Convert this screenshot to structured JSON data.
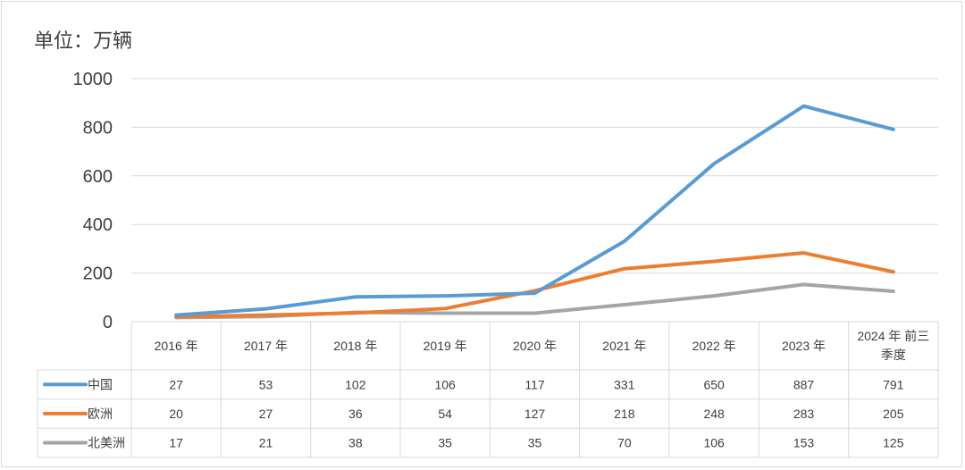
{
  "unit_label": "单位：万辆",
  "colors": {
    "中国": "#5b9bd5",
    "欧洲": "#ed7d31",
    "北美洲": "#a5a5a5",
    "grid": "#d9d9d9"
  },
  "chart_data": {
    "type": "line",
    "title": "",
    "xlabel": "",
    "ylabel": "单位：万辆",
    "ylim": [
      0,
      1000
    ],
    "yticks": [
      0,
      200,
      400,
      600,
      800,
      1000
    ],
    "grid": true,
    "legend": "data-table",
    "categories": [
      "2016 年",
      "2017 年",
      "2018 年",
      "2019 年",
      "2020 年",
      "2021 年",
      "2022 年",
      "2023 年",
      "2024 年 前三季度"
    ],
    "series": [
      {
        "name": "中国",
        "values": [
          27,
          53,
          102,
          106,
          117,
          331,
          650,
          887,
          791
        ]
      },
      {
        "name": "欧洲",
        "values": [
          20,
          27,
          36,
          54,
          127,
          218,
          248,
          283,
          205
        ]
      },
      {
        "name": "北美洲",
        "values": [
          17,
          21,
          38,
          35,
          35,
          70,
          106,
          153,
          125
        ]
      }
    ]
  }
}
